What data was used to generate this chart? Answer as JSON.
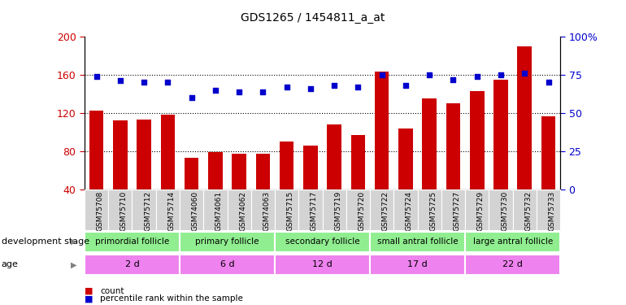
{
  "title": "GDS1265 / 1454811_a_at",
  "samples": [
    "GSM75708",
    "GSM75710",
    "GSM75712",
    "GSM75714",
    "GSM74060",
    "GSM74061",
    "GSM74062",
    "GSM74063",
    "GSM75715",
    "GSM75717",
    "GSM75719",
    "GSM75720",
    "GSM75722",
    "GSM75724",
    "GSM75725",
    "GSM75727",
    "GSM75729",
    "GSM75730",
    "GSM75732",
    "GSM75733"
  ],
  "counts": [
    122,
    112,
    113,
    118,
    73,
    79,
    77,
    77,
    90,
    86,
    108,
    97,
    163,
    104,
    135,
    130,
    143,
    155,
    190,
    116
  ],
  "percentiles": [
    74,
    71,
    70,
    70,
    60,
    65,
    64,
    64,
    67,
    66,
    68,
    67,
    75,
    68,
    75,
    72,
    74,
    75,
    76,
    70
  ],
  "group_labels": [
    "primordial follicle",
    "primary follicle",
    "secondary follicle",
    "small antral follicle",
    "large antral follicle"
  ],
  "group_starts": [
    0,
    4,
    8,
    12,
    16
  ],
  "group_ends": [
    4,
    8,
    12,
    16,
    20
  ],
  "age_labels": [
    "2 d",
    "6 d",
    "12 d",
    "17 d",
    "22 d"
  ],
  "ylim_left": [
    40,
    200
  ],
  "ylim_right": [
    0,
    100
  ],
  "yticks_left": [
    40,
    80,
    120,
    160,
    200
  ],
  "yticks_right": [
    0,
    25,
    50,
    75,
    100
  ],
  "bar_color": "#CC0000",
  "dot_color": "#0000CC",
  "plot_bg_color": "#ffffff",
  "dev_color": "#90EE90",
  "age_color": "#EE82EE",
  "xtick_bg": "#D3D3D3",
  "dev_stage_label": "development stage",
  "age_label": "age",
  "legend_count": "count",
  "legend_pct": "percentile rank within the sample"
}
